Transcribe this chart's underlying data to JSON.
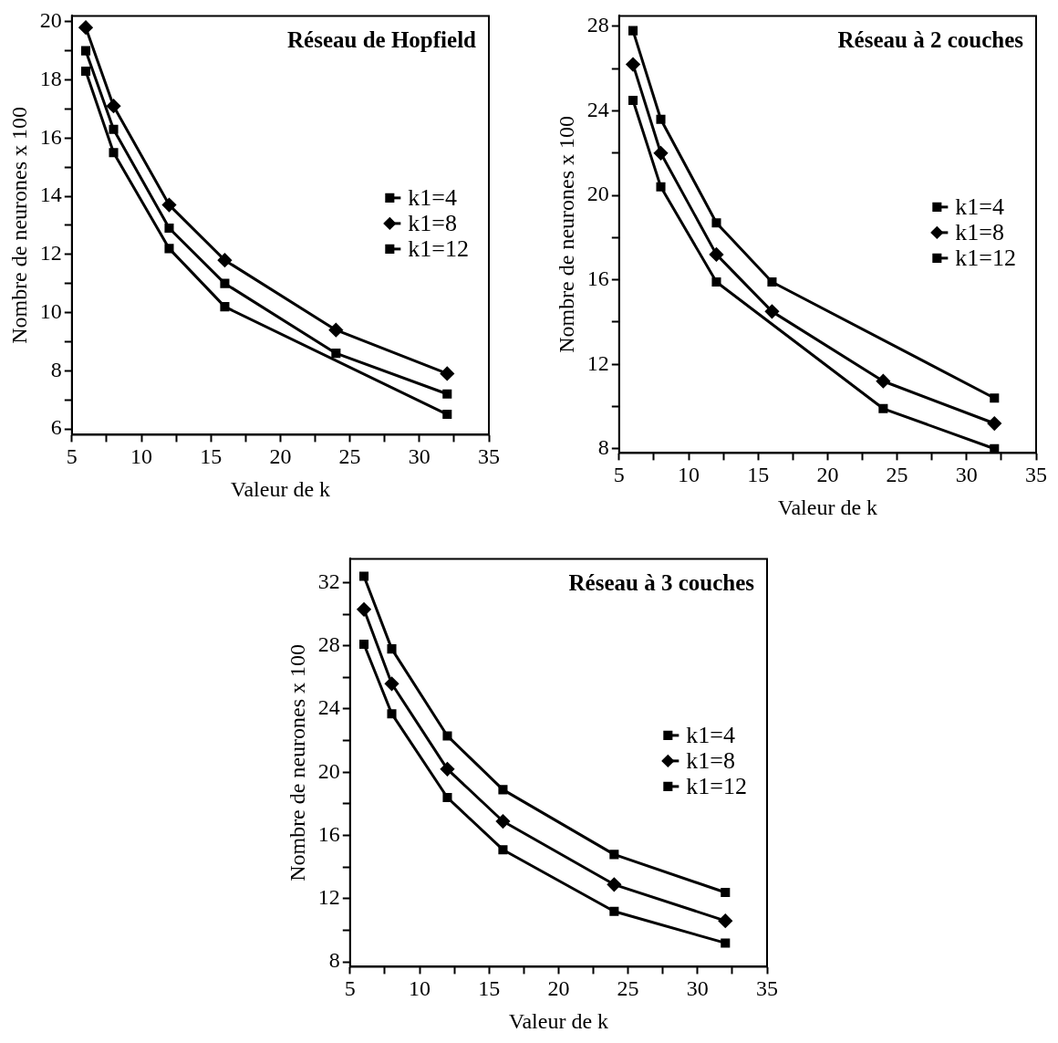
{
  "chart_data": [
    {
      "type": "line",
      "title": "Réseau de Hopfield",
      "xlabel": "Valeur de k",
      "ylabel": "Nombre de neurones x 100",
      "x": [
        6,
        8,
        12,
        16,
        24,
        32
      ],
      "xlim": [
        5,
        35
      ],
      "xticks": [
        5,
        {
          "value": 7.5,
          "label": null
        },
        10,
        {
          "value": 12.5,
          "label": null
        },
        15,
        {
          "value": 17.5,
          "label": null
        },
        20,
        {
          "value": 22.5,
          "label": null
        },
        25,
        {
          "value": 27.5,
          "label": null
        },
        30,
        {
          "value": 32.5,
          "label": null
        },
        35
      ],
      "ylim": [
        5.8,
        20.2
      ],
      "yticks": [
        6,
        {
          "value": 7,
          "label": null
        },
        8,
        {
          "value": 9,
          "label": null
        },
        10,
        {
          "value": 11,
          "label": null
        },
        12,
        {
          "value": 13,
          "label": null
        },
        14,
        {
          "value": 15,
          "label": null
        },
        16,
        {
          "value": 17,
          "label": null
        },
        18,
        {
          "value": 19,
          "label": null
        },
        20
      ],
      "legend": "right",
      "grid": false,
      "marker": "square",
      "line_style": "solid",
      "series": [
        {
          "name": "k1=4",
          "color": "#000000",
          "values": [
            19.0,
            16.3,
            12.9,
            11.0,
            8.6,
            7.2
          ]
        },
        {
          "name": "k1=8",
          "color": "#000000",
          "marker": "diamond",
          "values": [
            19.8,
            17.1,
            13.7,
            11.8,
            9.4,
            7.9
          ]
        },
        {
          "name": "k1=12",
          "color": "#000000",
          "values": [
            18.3,
            15.5,
            12.2,
            10.2,
            null,
            6.5
          ]
        }
      ]
    },
    {
      "type": "line",
      "title": "Réseau à 2 couches",
      "xlabel": "Valeur de k",
      "ylabel": "Nombre de neurones x 100",
      "x": [
        6,
        8,
        12,
        16,
        24,
        32
      ],
      "xlim": [
        5,
        35
      ],
      "xticks": [
        5,
        {
          "value": 7.5,
          "label": null
        },
        10,
        {
          "value": 12.5,
          "label": null
        },
        15,
        {
          "value": 17.5,
          "label": null
        },
        20,
        {
          "value": 22.5,
          "label": null
        },
        25,
        {
          "value": 27.5,
          "label": null
        },
        30,
        {
          "value": 32.5,
          "label": null
        },
        35
      ],
      "ylim": [
        7.8,
        28.5
      ],
      "yticks": [
        8,
        {
          "value": 10,
          "label": null
        },
        12,
        {
          "value": 14,
          "label": null
        },
        16,
        {
          "value": 18,
          "label": null
        },
        20,
        {
          "value": 22,
          "label": null
        },
        24,
        {
          "value": 26,
          "label": null
        },
        28
      ],
      "legend": "right",
      "grid": false,
      "marker": "square",
      "line_style": "solid",
      "series": [
        {
          "name": "k1=4",
          "color": "#000000",
          "values": [
            27.8,
            23.6,
            18.7,
            15.9,
            null,
            10.4
          ]
        },
        {
          "name": "k1=8",
          "color": "#000000",
          "marker": "diamond",
          "values": [
            26.2,
            22.0,
            17.2,
            14.5,
            11.2,
            9.2
          ]
        },
        {
          "name": "k1=12",
          "color": "#000000",
          "values": [
            24.5,
            20.4,
            15.9,
            null,
            9.9,
            8.0
          ]
        }
      ]
    },
    {
      "type": "line",
      "title": "Réseau à 3 couches",
      "xlabel": "Valeur de k",
      "ylabel": "Nombre de neurones x 100",
      "x": [
        6,
        8,
        12,
        16,
        24,
        32
      ],
      "xlim": [
        5,
        35
      ],
      "xticks": [
        5,
        {
          "value": 7.5,
          "label": null
        },
        10,
        {
          "value": 12.5,
          "label": null
        },
        15,
        {
          "value": 17.5,
          "label": null
        },
        20,
        {
          "value": 22.5,
          "label": null
        },
        25,
        {
          "value": 27.5,
          "label": null
        },
        30,
        {
          "value": 32.5,
          "label": null
        },
        35
      ],
      "ylim": [
        7.7,
        33.5
      ],
      "yticks": [
        8,
        {
          "value": 10,
          "label": null
        },
        12,
        {
          "value": 14,
          "label": null
        },
        16,
        {
          "value": 18,
          "label": null
        },
        20,
        {
          "value": 22,
          "label": null
        },
        24,
        {
          "value": 26,
          "label": null
        },
        28,
        {
          "value": 30,
          "label": null
        },
        32
      ],
      "legend": "right",
      "grid": false,
      "marker": "square",
      "line_style": "solid",
      "series": [
        {
          "name": "k1=4",
          "color": "#000000",
          "values": [
            32.4,
            27.8,
            22.3,
            18.9,
            14.8,
            12.4
          ]
        },
        {
          "name": "k1=8",
          "color": "#000000",
          "marker": "diamond",
          "values": [
            30.3,
            25.6,
            20.2,
            16.9,
            12.9,
            10.6
          ]
        },
        {
          "name": "k1=12",
          "color": "#000000",
          "values": [
            28.1,
            23.7,
            18.4,
            15.1,
            11.2,
            9.2
          ]
        }
      ]
    }
  ]
}
